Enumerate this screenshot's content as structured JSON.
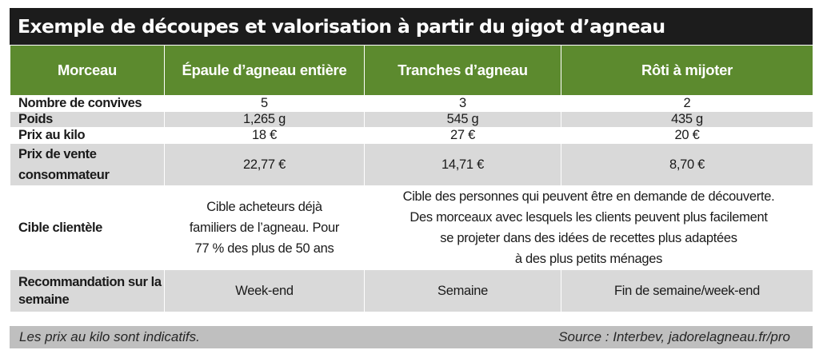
{
  "title": "Exemple de découpes et valorisation à partir du gigot d’agneau",
  "header": {
    "col0": "Morceau",
    "col1": "Épaule d’agneau entière",
    "col2": "Tranches d’agneau",
    "col3": "Rôti à mijoter"
  },
  "rows": [
    {
      "label": "Nombre de convives",
      "c1": "5",
      "c2": "3",
      "c3": "2"
    },
    {
      "label": "Poids",
      "c1": "1,265 g",
      "c2": "545 g",
      "c3": "435 g"
    },
    {
      "label": "Prix au kilo",
      "c1": "18 €",
      "c2": "27 €",
      "c3": "20 €"
    },
    {
      "label": "Prix de vente consommateur",
      "c1": "22,77 €",
      "c2": "14,71 €",
      "c3": "8,70 €"
    },
    {
      "label": "Cible clientèle",
      "c1": "Cible acheteurs déjà familiers de l’agneau. Pour 77 % des plus de 50 ans",
      "c23_lines": [
        "Cible des personnes qui peuvent être en demande de découverte.",
        "Des morceaux avec lesquels les clients peuvent plus facilement",
        "se projeter dans des idées de recettes plus adaptées",
        "à des plus petits ménages"
      ]
    },
    {
      "label": "Recommandation sur la semaine",
      "c1": "Week-end",
      "c2": "Semaine",
      "c3": "Fin de semaine/week-end"
    }
  ],
  "footer": {
    "note": "Les prix au kilo sont indicatifs.",
    "source": "Source : Interbev, jadorelagneau.fr/pro"
  },
  "colors": {
    "header_green": "#5c8a2e",
    "title_black": "#1c1c1c",
    "row_gray": "#d9d9d9",
    "footer_gray": "#bfbfbf"
  }
}
